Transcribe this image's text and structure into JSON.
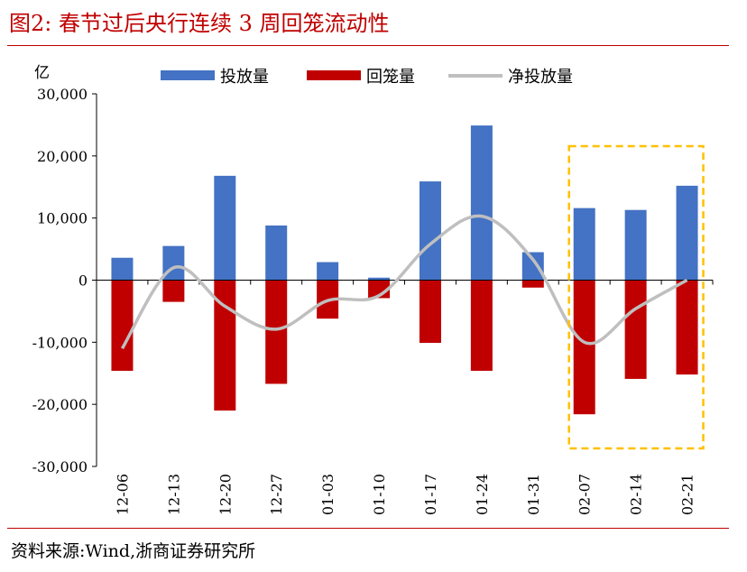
{
  "title": "图2:  春节过后央行连续 3 周回笼流动性",
  "source": "资料来源:Wind,浙商证券研究所",
  "chart_data": {
    "type": "bar",
    "ylabel": "亿",
    "ylim": [
      -30000,
      30000
    ],
    "yticks": [
      30000,
      20000,
      10000,
      0,
      -10000,
      -20000,
      -30000
    ],
    "ytick_labels": [
      "30,000",
      "20,000",
      "10,000",
      "0",
      "-10,000",
      "-20,000",
      "-30,000"
    ],
    "categories": [
      "12-06",
      "12-13",
      "12-20",
      "12-27",
      "01-03",
      "01-10",
      "01-17",
      "01-24",
      "01-31",
      "02-07",
      "02-14",
      "02-21"
    ],
    "series": [
      {
        "name": "投放量",
        "type": "bar",
        "color": "#4472c4",
        "values": [
          3600,
          5500,
          16800,
          8800,
          2900,
          400,
          15900,
          24900,
          4500,
          11600,
          11300,
          15200
        ]
      },
      {
        "name": "回笼量",
        "type": "bar",
        "color": "#c00000",
        "values": [
          -14600,
          -3500,
          -21000,
          -16700,
          -6200,
          -2900,
          -10100,
          -14600,
          -1200,
          -21600,
          -15900,
          -15200
        ]
      },
      {
        "name": "净投放量",
        "type": "line",
        "color": "#bfbfbf",
        "values": [
          -11000,
          2000,
          -4200,
          -7900,
          -3300,
          -2500,
          5800,
          10300,
          3300,
          -10000,
          -4600,
          0
        ]
      }
    ],
    "legend": "top",
    "highlight": {
      "from": "02-07",
      "to": "02-21",
      "color": "#ffc000",
      "style": "dashed"
    }
  }
}
